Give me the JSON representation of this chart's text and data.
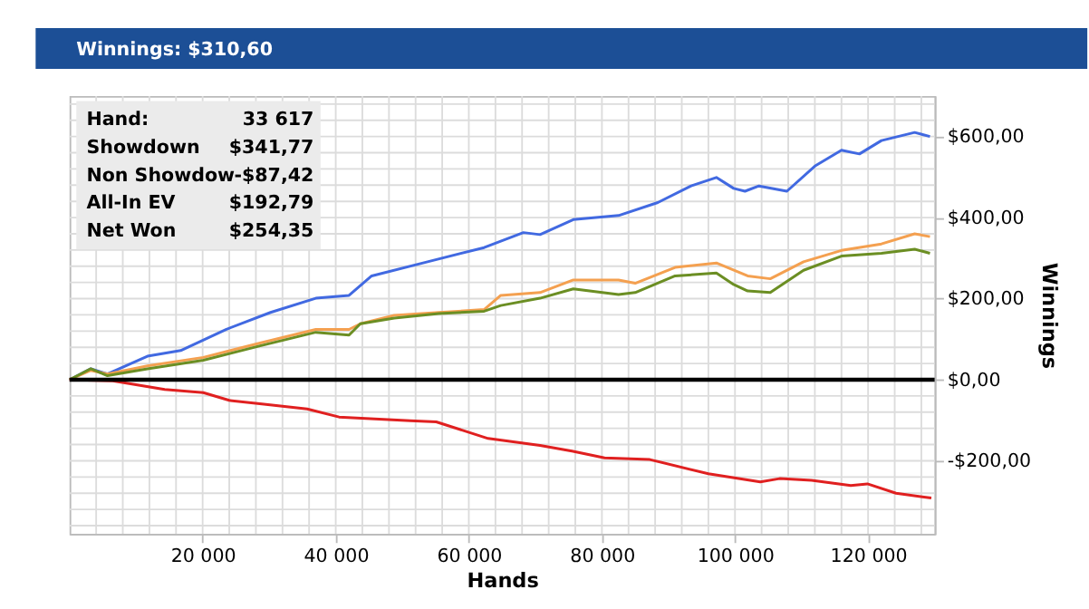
{
  "chart_data": {
    "type": "line",
    "title": "Winnings: $310,60",
    "xlabel": "Hands",
    "ylabel": "Winnings",
    "annotations": [
      "Hand:",
      "33 617",
      "Showdown",
      "$341,77",
      "Non Showdow",
      "-$87,42",
      "All-In EV",
      "$192,79",
      "Net Won",
      "$254,35"
    ],
    "xlim": [
      0,
      130000
    ],
    "ylim": [
      -380,
      700
    ],
    "xticks": [
      {
        "value": 4000,
        "label": null
      },
      {
        "value": 8000,
        "label": null
      },
      {
        "value": 12000,
        "label": null
      },
      {
        "value": 16000,
        "label": null
      },
      {
        "value": 20000,
        "label": "20 000"
      },
      {
        "value": 24000,
        "label": null
      },
      {
        "value": 28000,
        "label": null
      },
      {
        "value": 32000,
        "label": null
      },
      {
        "value": 36000,
        "label": null
      },
      {
        "value": 40000,
        "label": "40 000"
      },
      {
        "value": 44000,
        "label": null
      },
      {
        "value": 48000,
        "label": null
      },
      {
        "value": 52000,
        "label": null
      },
      {
        "value": 56000,
        "label": null
      },
      {
        "value": 60000,
        "label": "60 000"
      },
      {
        "value": 64000,
        "label": null
      },
      {
        "value": 68000,
        "label": null
      },
      {
        "value": 72000,
        "label": null
      },
      {
        "value": 76000,
        "label": null
      },
      {
        "value": 80000,
        "label": "80 000"
      },
      {
        "value": 84000,
        "label": null
      },
      {
        "value": 88000,
        "label": null
      },
      {
        "value": 92000,
        "label": null
      },
      {
        "value": 96000,
        "label": null
      },
      {
        "value": 100000,
        "label": "100 000"
      },
      {
        "value": 104000,
        "label": null
      },
      {
        "value": 108000,
        "label": null
      },
      {
        "value": 112000,
        "label": null
      },
      {
        "value": 116000,
        "label": null
      },
      {
        "value": 120000,
        "label": "120 000"
      },
      {
        "value": 124000,
        "label": null
      },
      {
        "value": 128000,
        "label": null
      }
    ],
    "yticks": [
      {
        "value": -360,
        "label": null
      },
      {
        "value": -320,
        "label": null
      },
      {
        "value": -280,
        "label": null
      },
      {
        "value": -240,
        "label": null
      },
      {
        "value": -200,
        "label": "-$200,00"
      },
      {
        "value": -160,
        "label": null
      },
      {
        "value": -120,
        "label": null
      },
      {
        "value": -80,
        "label": null
      },
      {
        "value": -40,
        "label": null
      },
      {
        "value": 0,
        "label": "$0,00"
      },
      {
        "value": 40,
        "label": null
      },
      {
        "value": 80,
        "label": null
      },
      {
        "value": 120,
        "label": null
      },
      {
        "value": 160,
        "label": null
      },
      {
        "value": 200,
        "label": "$200,00"
      },
      {
        "value": 240,
        "label": null
      },
      {
        "value": 280,
        "label": null
      },
      {
        "value": 320,
        "label": null
      },
      {
        "value": 360,
        "label": null
      },
      {
        "value": 400,
        "label": "$400,00"
      },
      {
        "value": 440,
        "label": null
      },
      {
        "value": 480,
        "label": null
      },
      {
        "value": 520,
        "label": null
      },
      {
        "value": 560,
        "label": null
      },
      {
        "value": 600,
        "label": "$600,00"
      },
      {
        "value": 640,
        "label": null
      },
      {
        "value": 680,
        "label": null
      }
    ],
    "grid": true,
    "marker": "none",
    "line_style": "solid",
    "ref_lines": [
      {
        "axis": "y",
        "value": 0,
        "color": "#000000"
      }
    ],
    "series": [
      {
        "color": "#4169e1",
        "x": [
          0,
          3200,
          5700,
          11700,
          16700,
          23500,
          30200,
          37000,
          42000,
          45400,
          53800,
          62300,
          68200,
          70700,
          75700,
          82500,
          88400,
          93400,
          97200,
          99800,
          101500,
          103600,
          107800,
          112000,
          116000,
          118700,
          122000,
          127000,
          129300
        ],
        "values": [
          0,
          27,
          14,
          58,
          72,
          124,
          166,
          201,
          208,
          256,
          291,
          326,
          363,
          358,
          395,
          405,
          437,
          478,
          499,
          472,
          465,
          478,
          465,
          527,
          566,
          557,
          590,
          610,
          600
        ]
      },
      {
        "color": "#f4a050",
        "x": [
          0,
          3200,
          5700,
          11700,
          20100,
          28500,
          37000,
          42000,
          43700,
          48800,
          55500,
          62300,
          64800,
          70700,
          75700,
          82500,
          85000,
          91000,
          97200,
          101900,
          105300,
          110300,
          116000,
          122000,
          127000,
          129300
        ],
        "values": [
          0,
          23,
          14,
          34,
          55,
          90,
          124,
          124,
          138,
          159,
          166,
          173,
          208,
          215,
          246,
          246,
          238,
          277,
          288,
          256,
          249,
          291,
          319,
          335,
          360,
          353
        ]
      },
      {
        "color": "#6b8e23",
        "x": [
          0,
          3200,
          5700,
          11700,
          20100,
          28500,
          37000,
          42000,
          43700,
          48800,
          55500,
          62300,
          64800,
          70700,
          75700,
          82500,
          85000,
          91000,
          97200,
          99800,
          101900,
          105300,
          110300,
          116000,
          122000,
          127000,
          129300
        ],
        "values": [
          0,
          27,
          10,
          27,
          48,
          83,
          117,
          110,
          138,
          152,
          163,
          169,
          183,
          201,
          224,
          210,
          215,
          256,
          263,
          235,
          219,
          215,
          270,
          305,
          312,
          322,
          312
        ]
      },
      {
        "color": "#e02020",
        "x": [
          0,
          6500,
          14300,
          20100,
          24000,
          28900,
          35700,
          40500,
          51200,
          55100,
          62900,
          70700,
          75500,
          80400,
          87200,
          96000,
          103800,
          106700,
          111500,
          117400,
          119900,
          124200,
          129500
        ],
        "values": [
          0,
          -3,
          -24,
          -32,
          -51,
          -60,
          -72,
          -92,
          -101,
          -104,
          -145,
          -162,
          -176,
          -193,
          -197,
          -232,
          -252,
          -244,
          -248,
          -261,
          -257,
          -280,
          -292
        ]
      }
    ]
  }
}
